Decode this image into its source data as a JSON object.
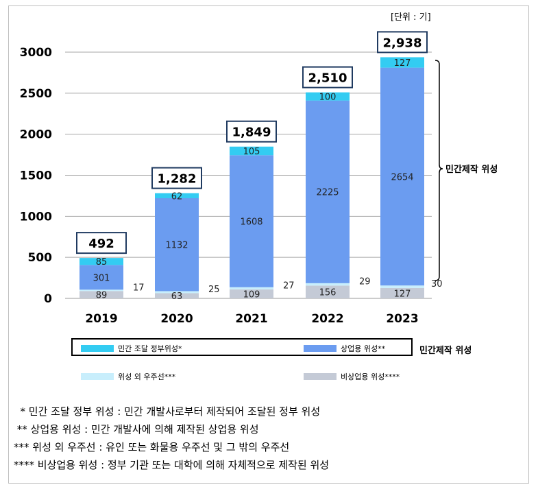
{
  "unit_label": "[단위 : 기]",
  "legend": {
    "items": [
      {
        "label": "민간 조달 정부위성*",
        "color": "#33ccf2"
      },
      {
        "label": "상업용 위성**",
        "color": "#6b9cf0"
      },
      {
        "label": "위성 외 우주선***",
        "color": "#c8eefc"
      },
      {
        "label": "비상업용 위성****",
        "color": "#c4cad6"
      }
    ],
    "private_label": "민간제작 위성"
  },
  "bracket_label": "민간제작 위성",
  "notes": [
    "  * 민간 조달 정부 위성 : 민간 개발사로부터 제작되어 조달된 정부 위성",
    " ** 상업용 위성 : 민간 개발사에 의해 제작된 상업용 위성",
    "*** 위성 외 우주선 : 유인 또는 화물용 우주선 및 그 밖의 우주선",
    "**** 비상업용 위성 : 정부 기관 또는 대학에 의해 자체적으로 제작된 위성"
  ],
  "chart_data": {
    "type": "bar",
    "stacked": true,
    "categories": [
      "2019",
      "2020",
      "2021",
      "2022",
      "2023"
    ],
    "ylim": [
      0,
      3000
    ],
    "yticks": [
      0,
      500,
      1000,
      1500,
      2000,
      2500,
      3000
    ],
    "grid": true,
    "series": [
      {
        "name": "비상업용 위성****",
        "color": "#c4cad6",
        "values": [
          89,
          63,
          109,
          156,
          127
        ]
      },
      {
        "name": "위성 외 우주선***",
        "color": "#c8eefc",
        "values": [
          17,
          25,
          27,
          29,
          30
        ]
      },
      {
        "name": "상업용 위성**",
        "color": "#6b9cf0",
        "values": [
          301,
          1132,
          1608,
          2225,
          2654
        ]
      },
      {
        "name": "민간 조달 정부위성*",
        "color": "#33ccf2",
        "values": [
          85,
          62,
          105,
          100,
          127
        ]
      }
    ],
    "totals": [
      "492",
      "1,282",
      "1,849",
      "2,510",
      "2,938"
    ]
  }
}
